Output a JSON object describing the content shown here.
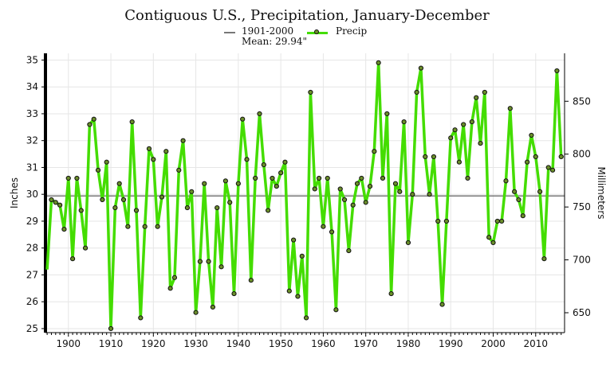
{
  "chart_data": {
    "type": "line",
    "title": "Contiguous U.S., Precipitation, January-December",
    "left_ylabel": "Inches",
    "right_ylabel": "Millimeters",
    "legend": {
      "reference": {
        "label": "1901-2000",
        "sublabel": "Mean: 29.94\""
      },
      "series": "Precip"
    },
    "reference_line": {
      "value": 29.94
    },
    "x_ticks": [
      1900,
      1910,
      1920,
      1930,
      1940,
      1950,
      1960,
      1970,
      1980,
      1990,
      2000,
      2010
    ],
    "xlim": [
      1894.6,
      2016.8
    ],
    "y_ticks_inches": [
      25,
      26,
      27,
      28,
      29,
      30,
      31,
      32,
      33,
      34,
      35
    ],
    "y_ticks_mm": [
      650,
      700,
      750,
      800,
      850
    ],
    "ylim_inches": [
      24.85,
      35.25
    ],
    "grid": true,
    "legend_position": "top-center",
    "colors": {
      "series": "#44dd00",
      "marker": "#6b8f2a",
      "reference": "#777777",
      "grid": "#e6e6e6"
    },
    "series": [
      {
        "name": "Precip",
        "x": [
          1895,
          1896,
          1897,
          1898,
          1899,
          1900,
          1901,
          1902,
          1903,
          1904,
          1905,
          1906,
          1907,
          1908,
          1909,
          1910,
          1911,
          1912,
          1913,
          1914,
          1915,
          1916,
          1917,
          1918,
          1919,
          1920,
          1921,
          1922,
          1923,
          1924,
          1925,
          1926,
          1927,
          1928,
          1929,
          1930,
          1931,
          1932,
          1933,
          1934,
          1935,
          1936,
          1937,
          1938,
          1939,
          1940,
          1941,
          1942,
          1943,
          1944,
          1945,
          1946,
          1947,
          1948,
          1949,
          1950,
          1951,
          1952,
          1953,
          1954,
          1955,
          1956,
          1957,
          1958,
          1959,
          1960,
          1961,
          1962,
          1963,
          1964,
          1965,
          1966,
          1967,
          1968,
          1969,
          1970,
          1971,
          1972,
          1973,
          1974,
          1975,
          1976,
          1977,
          1978,
          1979,
          1980,
          1981,
          1982,
          1983,
          1984,
          1985,
          1986,
          1987,
          1988,
          1989,
          1990,
          1991,
          1992,
          1993,
          1994,
          1995,
          1996,
          1997,
          1998,
          1999,
          2000,
          2001,
          2002,
          2003,
          2004,
          2005,
          2006,
          2007,
          2008,
          2009,
          2010,
          2011,
          2012,
          2013,
          2014,
          2015,
          2016
        ],
        "y": [
          27.2,
          29.8,
          29.7,
          29.6,
          28.7,
          30.6,
          27.6,
          30.6,
          29.4,
          28.0,
          32.6,
          32.8,
          30.9,
          29.8,
          31.2,
          25.0,
          29.5,
          30.4,
          29.8,
          28.8,
          32.7,
          29.4,
          25.4,
          28.8,
          31.7,
          31.3,
          28.8,
          29.9,
          31.6,
          26.5,
          26.9,
          30.9,
          32.0,
          29.5,
          30.1,
          25.6,
          27.5,
          30.4,
          27.5,
          25.8,
          29.5,
          27.3,
          30.5,
          29.7,
          26.3,
          30.4,
          32.8,
          31.3,
          26.8,
          30.6,
          33.0,
          31.1,
          29.4,
          30.6,
          30.3,
          30.8,
          31.2,
          26.4,
          28.3,
          26.2,
          27.7,
          25.4,
          33.8,
          30.2,
          30.6,
          28.8,
          30.6,
          28.6,
          25.7,
          30.2,
          29.8,
          27.9,
          29.6,
          30.4,
          30.6,
          29.7,
          30.3,
          31.6,
          34.9,
          30.6,
          33.0,
          26.3,
          30.4,
          30.1,
          32.7,
          28.2,
          30.0,
          33.8,
          34.7,
          31.4,
          30.0,
          31.4,
          29.0,
          25.9,
          29.0,
          32.1,
          32.4,
          31.2,
          32.6,
          30.6,
          32.7,
          33.6,
          31.9,
          33.8,
          28.4,
          28.2,
          29.0,
          29.0,
          30.5,
          33.2,
          30.1,
          29.8,
          29.2,
          31.2,
          32.2,
          31.4,
          30.1,
          27.6,
          31.0,
          30.9,
          34.6,
          31.4
        ]
      }
    ]
  }
}
